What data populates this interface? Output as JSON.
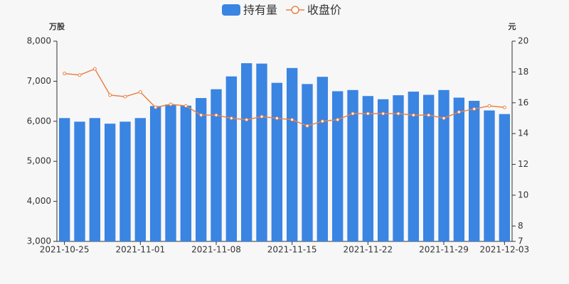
{
  "chart_data": {
    "type": "bar-line",
    "legend_position": "top",
    "y_axis_name": "万股",
    "y2_axis_name": "元",
    "categories": [
      "2021-10-25",
      null,
      null,
      null,
      null,
      "2021-11-01",
      null,
      null,
      null,
      null,
      "2021-11-08",
      null,
      null,
      null,
      null,
      "2021-11-15",
      null,
      null,
      null,
      null,
      "2021-11-22",
      null,
      null,
      null,
      null,
      "2021-11-29",
      null,
      null,
      null,
      "2021-12-03"
    ],
    "series": [
      {
        "name": "持有量",
        "type": "bar",
        "color": "#3a84e2",
        "values": [
          6080,
          5990,
          6080,
          5940,
          5990,
          6080,
          6380,
          6420,
          6390,
          6580,
          6800,
          7120,
          7450,
          7440,
          6960,
          7330,
          6930,
          7110,
          6750,
          6780,
          6630,
          6550,
          6650,
          6740,
          6660,
          6780,
          6590,
          6510,
          6270,
          6180
        ]
      },
      {
        "name": "收盘价",
        "type": "line",
        "axis": "y2",
        "color": "#e8834a",
        "values": [
          17.9,
          17.8,
          18.2,
          16.5,
          16.4,
          16.7,
          15.7,
          15.9,
          15.8,
          15.2,
          15.2,
          15.0,
          14.9,
          15.1,
          15.0,
          14.9,
          14.5,
          14.8,
          14.9,
          15.3,
          15.3,
          15.3,
          15.3,
          15.2,
          15.2,
          15.0,
          15.4,
          15.6,
          15.8,
          15.7
        ]
      }
    ],
    "ylim": [
      3000,
      8000
    ],
    "yticks": [
      {
        "value": 3000,
        "label": "3,000"
      },
      {
        "value": 4000,
        "label": "4,000"
      },
      {
        "value": 5000,
        "label": "5,000"
      },
      {
        "value": 6000,
        "label": "6,000"
      },
      {
        "value": 7000,
        "label": "7,000"
      },
      {
        "value": 8000,
        "label": "8,000"
      }
    ],
    "y2lim": [
      7,
      20
    ],
    "y2ticks": [
      7,
      8,
      10,
      12,
      14,
      16,
      18,
      20
    ]
  }
}
